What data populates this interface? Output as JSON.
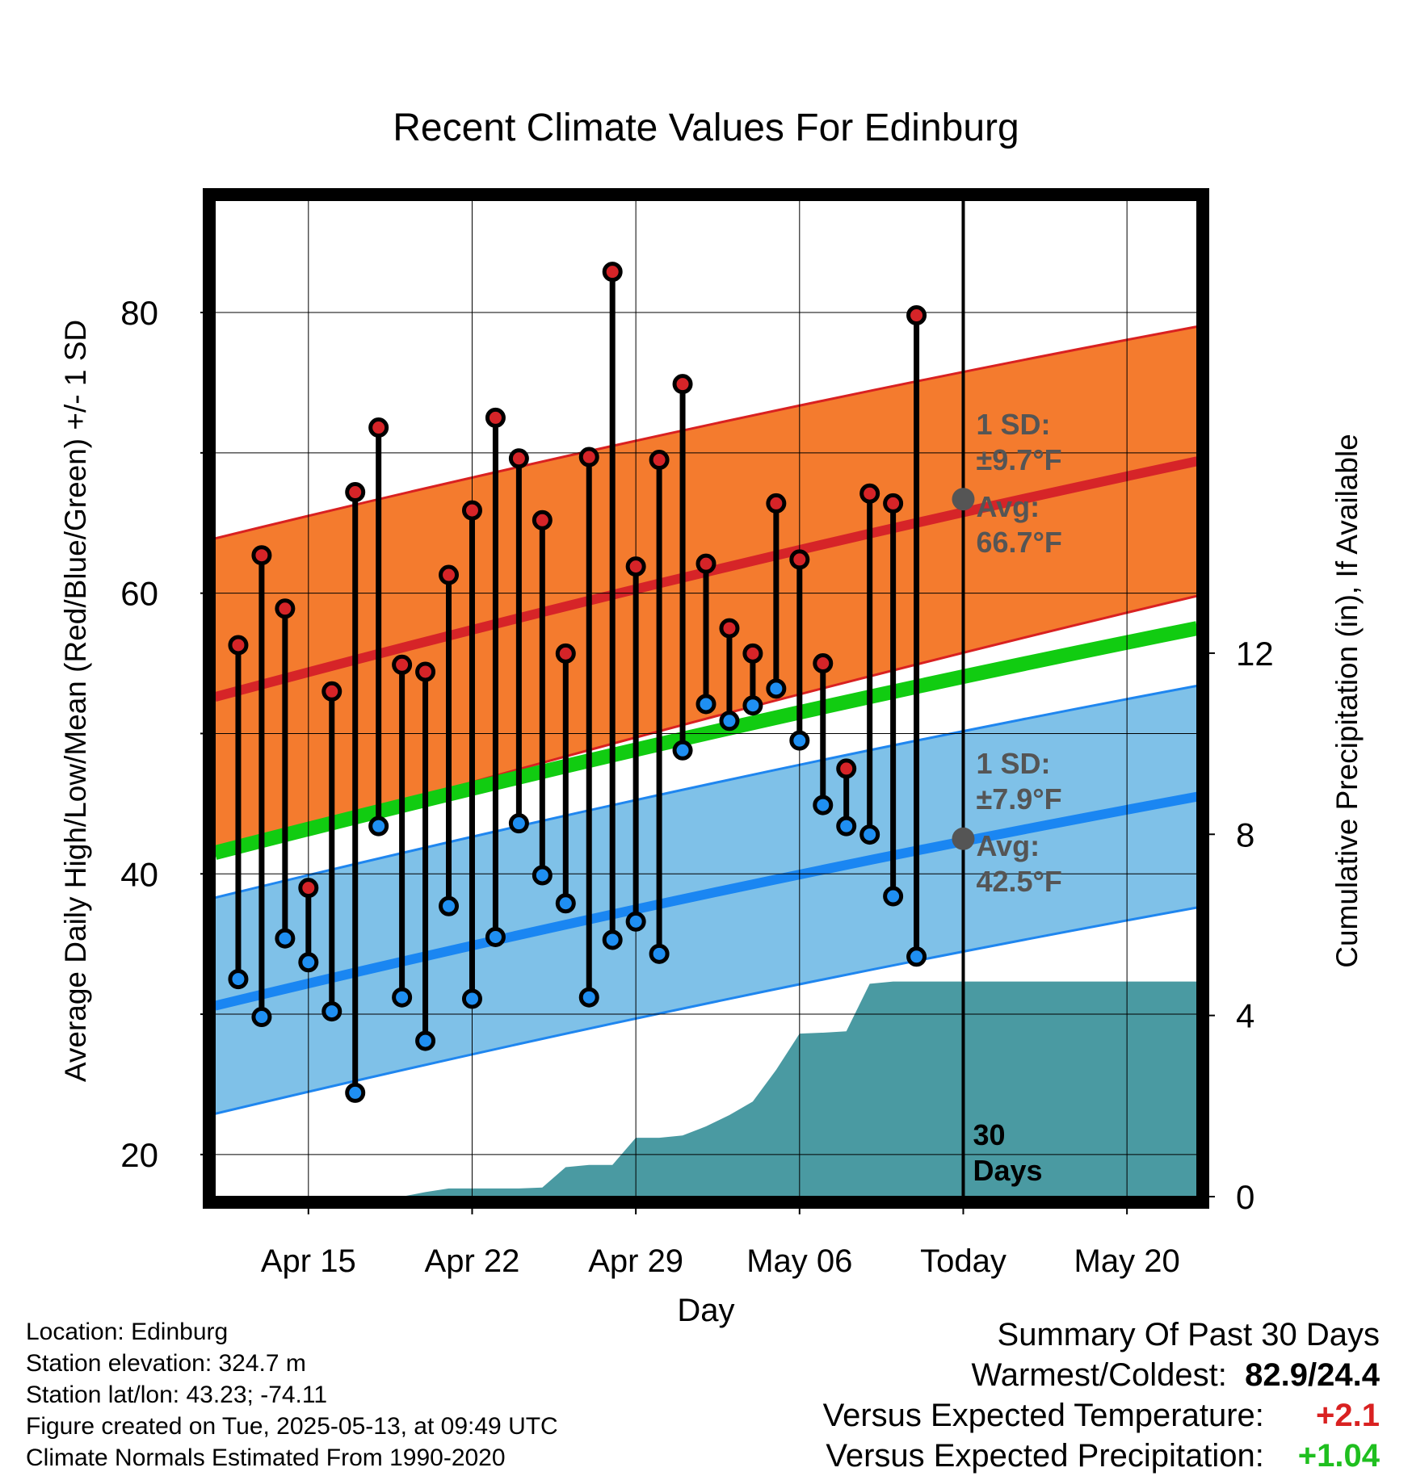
{
  "chart_data": {
    "type": "climate-range",
    "title": "Recent Climate Values For Edinburg",
    "xlabel": "Day",
    "ylabel_left": "Average Daily High/Low/Mean (Red/Blue/Green) +/- 1 SD",
    "ylabel_right": "Cumulative Precipitation (in), If Available",
    "x_range_days": [
      "2025-04-11",
      "2025-05-23"
    ],
    "x_ticks": [
      {
        "date": "2025-04-15",
        "label": "Apr 15"
      },
      {
        "date": "2025-04-22",
        "label": "Apr 22"
      },
      {
        "date": "2025-04-29",
        "label": "Apr 29"
      },
      {
        "date": "2025-05-06",
        "label": "May 06"
      },
      {
        "date": "2025-05-13",
        "label": "Today"
      },
      {
        "date": "2025-05-20",
        "label": "May 20"
      }
    ],
    "ylim_left": [
      17,
      88
    ],
    "yticks_left": [
      "20",
      "40",
      "60",
      "80"
    ],
    "yticks_left_values": [
      20,
      40,
      60,
      80
    ],
    "ylim_right": [
      0,
      22
    ],
    "yticks_right": [
      "0",
      "4",
      "8",
      "12"
    ],
    "yticks_right_values": [
      0,
      4,
      8,
      12
    ],
    "grid": true,
    "today": "2025-05-13",
    "today_label_line1": "30",
    "today_label_line2": "Days",
    "normals": {
      "x": [
        "2025-04-11",
        "2025-05-23"
      ],
      "high_avg": [
        52.6,
        69.4
      ],
      "high_sd": [
        11.3,
        9.6
      ],
      "low_avg": [
        30.6,
        45.5
      ],
      "low_sd": [
        7.7,
        7.9
      ],
      "mean_avg": [
        41.5,
        57.5
      ]
    },
    "annotations": {
      "high_sd_line1": "1 SD:",
      "high_sd_line2": "±9.7°F",
      "high_avg_line1": "Avg:",
      "high_avg_line2": "66.7°F",
      "low_sd_line1": "1 SD:",
      "low_sd_line2": "±7.9°F",
      "low_avg_line1": "Avg:",
      "low_avg_line2": "42.5°F",
      "high_avg_value": 66.7,
      "low_avg_value": 42.5
    },
    "daily": {
      "dates": [
        "2025-04-12",
        "2025-04-13",
        "2025-04-14",
        "2025-04-15",
        "2025-04-16",
        "2025-04-17",
        "2025-04-18",
        "2025-04-19",
        "2025-04-20",
        "2025-04-21",
        "2025-04-22",
        "2025-04-23",
        "2025-04-24",
        "2025-04-25",
        "2025-04-26",
        "2025-04-27",
        "2025-04-28",
        "2025-04-29",
        "2025-04-30",
        "2025-05-01",
        "2025-05-02",
        "2025-05-03",
        "2025-05-04",
        "2025-05-05",
        "2025-05-06",
        "2025-05-07",
        "2025-05-08",
        "2025-05-09",
        "2025-05-10",
        "2025-05-11",
        "2025-05-12"
      ],
      "high": [
        56.3,
        62.7,
        58.9,
        39.0,
        53.0,
        67.2,
        71.8,
        54.9,
        54.4,
        61.3,
        65.9,
        72.5,
        69.6,
        65.2,
        55.7,
        69.7,
        82.9,
        61.9,
        69.5,
        74.9,
        62.1,
        57.5,
        55.7,
        66.4,
        62.4,
        55.0,
        47.5,
        67.1,
        66.4,
        79.8,
        null
      ],
      "low": [
        32.5,
        29.8,
        35.4,
        33.7,
        30.2,
        24.4,
        43.4,
        31.2,
        28.1,
        37.7,
        31.1,
        35.5,
        43.6,
        39.9,
        37.9,
        31.2,
        35.3,
        36.6,
        34.3,
        48.8,
        52.1,
        50.9,
        52.0,
        53.2,
        49.5,
        44.9,
        43.4,
        42.8,
        38.4,
        34.1,
        null
      ]
    },
    "precip_cumulative": {
      "x": [
        "2025-04-11",
        "2025-04-19",
        "2025-04-20",
        "2025-04-21",
        "2025-04-22",
        "2025-04-23",
        "2025-04-24",
        "2025-04-25",
        "2025-04-26",
        "2025-04-27",
        "2025-04-28",
        "2025-04-29",
        "2025-04-30",
        "2025-05-01",
        "2025-05-02",
        "2025-05-03",
        "2025-05-04",
        "2025-05-05",
        "2025-05-06",
        "2025-05-07",
        "2025-05-08",
        "2025-05-09",
        "2025-05-10",
        "2025-05-23"
      ],
      "y": [
        0,
        0,
        0.1,
        0.18,
        0.18,
        0.18,
        0.18,
        0.2,
        0.65,
        0.7,
        0.7,
        1.3,
        1.3,
        1.35,
        1.55,
        1.8,
        2.1,
        2.8,
        3.6,
        3.62,
        3.65,
        4.7,
        4.75,
        4.75
      ]
    },
    "colors": {
      "high_band": "#f47b2e",
      "high_band_edge": "#d92121",
      "high_avg_line": "#d62428",
      "low_band": "#7fc1e8",
      "low_band_edge": "#1f86ef",
      "low_avg_line": "#1a86f2",
      "mean_line": "#11cc11",
      "precip_fill": "#4a9aa2",
      "high_dot": "#d62428",
      "low_dot": "#1f8ff2",
      "avg_marker": "#555555",
      "annotation_text": "#555555"
    }
  },
  "info": {
    "location": "Location: Edinburg",
    "elevation": "Station elevation: 324.7 m",
    "latlon": "Station lat/lon: 43.23; -74.11",
    "created": "Figure created on Tue, 2025-05-13, at 09:49 UTC",
    "normals": "Climate Normals Estimated From 1990-2020"
  },
  "summary": {
    "title": "Summary Of Past 30 Days",
    "warm_cold_label": "Warmest/Coldest:",
    "warm_cold_value": "82.9/24.4",
    "temp_label": "Versus Expected Temperature:",
    "temp_value": "+2.1",
    "precip_label": "Versus Expected Precipitation:",
    "precip_value": "+1.04"
  }
}
